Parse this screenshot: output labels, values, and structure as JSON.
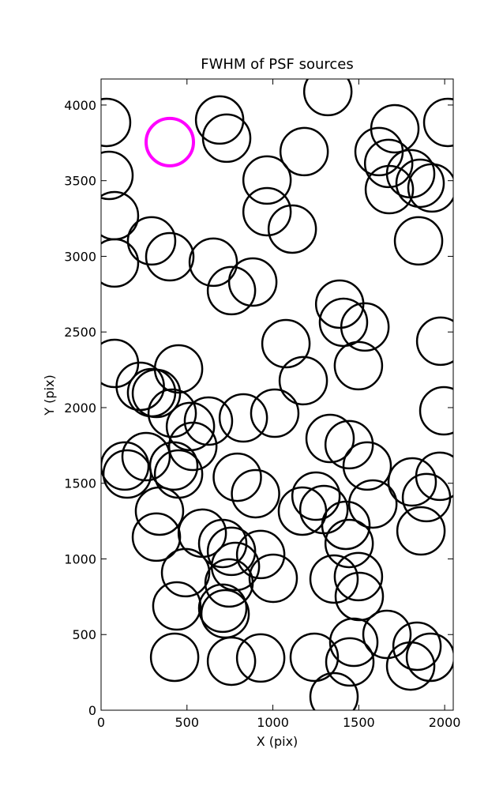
{
  "chart_data": {
    "type": "scatter",
    "title": "FWHM of PSF sources",
    "x_label": "X (pix)",
    "y_label": "Y (pix)",
    "xlim": [
      0,
      2050
    ],
    "ylim": [
      0,
      4172
    ],
    "xticks": [
      0,
      500,
      1000,
      1500,
      2000
    ],
    "yticks": [
      0,
      500,
      1000,
      1500,
      2000,
      2500,
      3000,
      3500,
      4000
    ],
    "series": [
      {
        "color": "#000000",
        "x": [
          32,
          46,
          78,
          78,
          78,
          690,
          731,
          1182,
          1320,
          966,
          966,
          1113,
          294,
          400,
          653,
          883,
          759,
          1710,
          1618,
          1674,
          1678,
          1802,
          1857,
          1926,
          2018,
          1848,
          1389,
          1411,
          1536,
          1076,
          1498,
          1177,
          1977,
          1995,
          228,
          294,
          322,
          451,
          414,
          520,
          625,
          828,
          1011,
          534,
          262,
          138,
          152,
          423,
          451,
          1333,
          1444,
          1549,
          1972,
          1811,
          1894,
          793,
          899,
          340,
          322,
          1251,
          1172,
          1297,
          1425,
          1444,
          1582,
          1862,
          589,
          708,
          759,
          782,
          929,
          1002,
          492,
          745,
          441,
          708,
          722,
          1356,
          1498,
          1503,
          1664,
          1471,
          1839,
          1917,
          1802,
          1448,
          1241,
          1356,
          428,
          759,
          929
        ],
        "values": [
          3885,
          3535,
          3269,
          2956,
          2292,
          3901,
          3781,
          3692,
          4089,
          3504,
          3295,
          3180,
          3102,
          2997,
          2961,
          2830,
          2773,
          3843,
          3692,
          3614,
          3441,
          3546,
          3483,
          3452,
          3885,
          3102,
          2684,
          2564,
          2533,
          2423,
          2277,
          2178,
          2439,
          1979,
          2141,
          2099,
          2094,
          2256,
          1963,
          1875,
          1911,
          1932,
          1963,
          1744,
          1676,
          1614,
          1561,
          1614,
          1561,
          1796,
          1755,
          1614,
          1546,
          1509,
          1405,
          1540,
          1431,
          1316,
          1144,
          1415,
          1316,
          1326,
          1222,
          1102,
          1363,
          1185,
          1170,
          1102,
          1050,
          950,
          1029,
          872,
          909,
          841,
          689,
          674,
          637,
          867,
          883,
          752,
          501,
          449,
          423,
          350,
          292,
          319,
          350,
          89,
          350,
          324,
          345
        ]
      },
      {
        "color": "#ff00ff",
        "x": [
          400
        ],
        "values": [
          3755
        ]
      }
    ]
  }
}
